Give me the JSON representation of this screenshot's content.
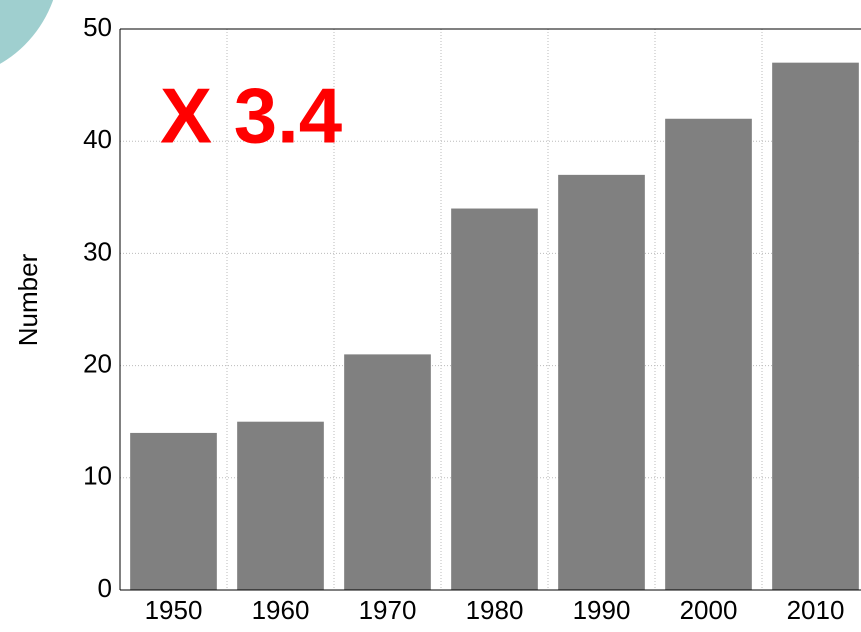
{
  "chart_data": {
    "type": "bar",
    "annotation": "X 3.4",
    "ylabel": "Number",
    "categories": [
      "1950",
      "1960",
      "1970",
      "1980",
      "1990",
      "2000",
      "2010"
    ],
    "values": [
      14,
      15,
      21,
      34,
      37,
      42,
      47
    ],
    "color": "#808080",
    "annotation_color": "#ff0000",
    "ylim": [
      0,
      50
    ],
    "yticks": [
      0,
      10,
      20,
      30,
      40,
      50
    ],
    "grid": true
  }
}
